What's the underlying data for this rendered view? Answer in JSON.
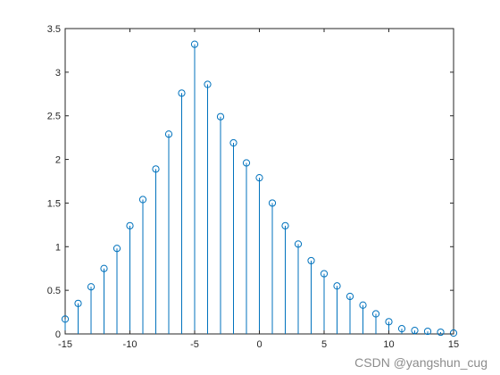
{
  "chart_data": {
    "type": "stem",
    "title": "",
    "xlabel": "",
    "ylabel": "",
    "xlim": [
      -15,
      15
    ],
    "ylim": [
      0,
      3.5
    ],
    "xticks": [
      -15,
      -10,
      -5,
      0,
      5,
      10,
      15
    ],
    "yticks": [
      0,
      0.5,
      1,
      1.5,
      2,
      2.5,
      3,
      3.5
    ],
    "grid": false,
    "box": true,
    "color": "#0072BD",
    "x": [
      -15,
      -14,
      -13,
      -12,
      -11,
      -10,
      -9,
      -8,
      -7,
      -6,
      -5,
      -4,
      -3,
      -2,
      -1,
      0,
      1,
      2,
      3,
      4,
      5,
      6,
      7,
      8,
      9,
      10,
      11,
      12,
      13,
      14,
      15
    ],
    "values": [
      0.17,
      0.35,
      0.54,
      0.75,
      0.98,
      1.24,
      1.54,
      1.89,
      2.29,
      2.76,
      3.32,
      2.86,
      2.49,
      2.19,
      1.96,
      1.79,
      1.5,
      1.24,
      1.03,
      0.84,
      0.69,
      0.55,
      0.43,
      0.33,
      0.23,
      0.14,
      0.06,
      0.04,
      0.03,
      0.02,
      0.01
    ]
  },
  "watermark": "CSDN @yangshun_cug"
}
